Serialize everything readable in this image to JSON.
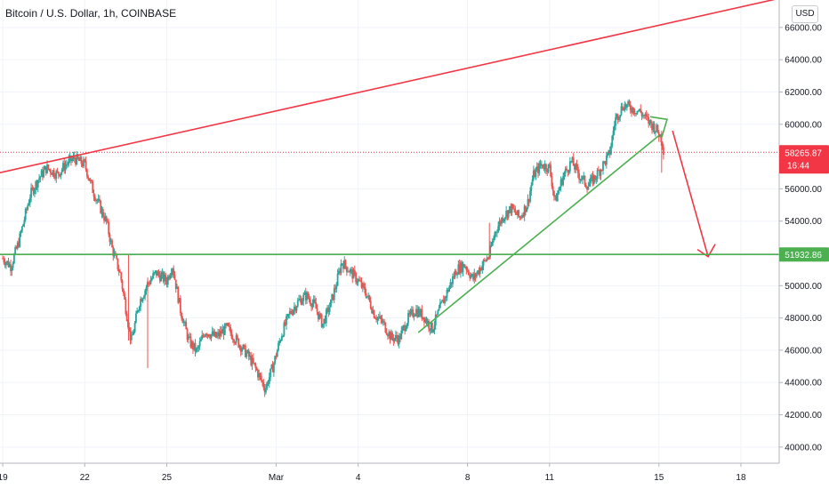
{
  "header": {
    "title": "Bitcoin / U.S. Dollar, 1h, COINBASE",
    "currency_button": "USD"
  },
  "chart_data": {
    "type": "candlestick",
    "title": "Bitcoin / U.S. Dollar, 1h, COINBASE",
    "y_ticks": [
      "40000.00",
      "42000.00",
      "44000.00",
      "46000.00",
      "48000.00",
      "50000.00",
      "52000.00",
      "54000.00",
      "56000.00",
      "58000.00",
      "60000.00",
      "62000.00",
      "64000.00",
      "66000.00"
    ],
    "y_tick_values": [
      40000,
      42000,
      44000,
      46000,
      48000,
      50000,
      52000,
      54000,
      56000,
      58000,
      60000,
      62000,
      64000,
      66000
    ],
    "ylim": [
      39000,
      67700
    ],
    "x_ticks": [
      "19",
      "22",
      "25",
      "Mar",
      "4",
      "8",
      "11",
      "15",
      "18"
    ],
    "x_tick_days": [
      0,
      3,
      6,
      10,
      13,
      17,
      20,
      24,
      27
    ],
    "x_range_days": [
      -0.1,
      28.4
    ],
    "grid": true,
    "colors": {
      "up": "#26a69a",
      "down": "#ef5350",
      "resistance": "#f23645",
      "support": "#4caf50",
      "dotted_price": "#f23645"
    },
    "current_price": {
      "value": 58265.87,
      "label": "58265.87",
      "countdown": "16:44"
    },
    "support_level": {
      "value": 51932.86,
      "label": "51932.86"
    },
    "close_path": [
      [
        0.0,
        51700
      ],
      [
        0.3,
        51200
      ],
      [
        0.6,
        52800
      ],
      [
        1.0,
        55600
      ],
      [
        1.3,
        56600
      ],
      [
        1.6,
        57300
      ],
      [
        2.0,
        56900
      ],
      [
        2.3,
        57500
      ],
      [
        2.6,
        57900
      ],
      [
        3.0,
        57500
      ],
      [
        3.3,
        55900
      ],
      [
        3.6,
        54700
      ],
      [
        3.8,
        53900
      ],
      [
        4.0,
        52300
      ],
      [
        4.3,
        50700
      ],
      [
        4.5,
        48600
      ],
      [
        4.7,
        46500
      ],
      [
        5.0,
        49000
      ],
      [
        5.3,
        50100
      ],
      [
        5.6,
        50800
      ],
      [
        6.0,
        50300
      ],
      [
        6.2,
        51300
      ],
      [
        6.5,
        48500
      ],
      [
        6.8,
        46600
      ],
      [
        7.1,
        45900
      ],
      [
        7.4,
        47200
      ],
      [
        7.8,
        46800
      ],
      [
        8.2,
        47400
      ],
      [
        8.6,
        46500
      ],
      [
        9.0,
        45600
      ],
      [
        9.3,
        44700
      ],
      [
        9.6,
        43600
      ],
      [
        9.9,
        45100
      ],
      [
        10.2,
        47000
      ],
      [
        10.5,
        48300
      ],
      [
        10.8,
        49000
      ],
      [
        11.1,
        49400
      ],
      [
        11.4,
        48800
      ],
      [
        11.7,
        47600
      ],
      [
        12.0,
        48900
      ],
      [
        12.2,
        50100
      ],
      [
        12.4,
        51500
      ],
      [
        12.7,
        50900
      ],
      [
        13.0,
        50300
      ],
      [
        13.3,
        49500
      ],
      [
        13.6,
        48200
      ],
      [
        13.9,
        47700
      ],
      [
        14.2,
        46800
      ],
      [
        14.5,
        46700
      ],
      [
        14.8,
        47900
      ],
      [
        15.1,
        48500
      ],
      [
        15.4,
        48100
      ],
      [
        15.7,
        47300
      ],
      [
        16.0,
        48600
      ],
      [
        16.3,
        49800
      ],
      [
        16.6,
        51000
      ],
      [
        16.9,
        51300
      ],
      [
        17.2,
        50400
      ],
      [
        17.5,
        51200
      ],
      [
        17.8,
        51900
      ],
      [
        18.0,
        53300
      ],
      [
        18.3,
        54300
      ],
      [
        18.6,
        54800
      ],
      [
        18.9,
        54200
      ],
      [
        19.2,
        55100
      ],
      [
        19.4,
        56800
      ],
      [
        19.7,
        57500
      ],
      [
        20.0,
        57300
      ],
      [
        20.2,
        55200
      ],
      [
        20.5,
        56800
      ],
      [
        20.8,
        57700
      ],
      [
        21.1,
        56800
      ],
      [
        21.4,
        56200
      ],
      [
        21.7,
        56800
      ],
      [
        22.0,
        57600
      ],
      [
        22.2,
        58200
      ],
      [
        22.4,
        60300
      ],
      [
        22.7,
        61200
      ],
      [
        23.0,
        61000
      ],
      [
        23.3,
        60800
      ],
      [
        23.6,
        60200
      ],
      [
        23.9,
        59700
      ],
      [
        24.1,
        59100
      ],
      [
        24.2,
        58100
      ]
    ],
    "annotations": [
      {
        "type": "trendline",
        "color": "resistance",
        "from": [
          -0.1,
          57000
        ],
        "to": [
          28.4,
          67800
        ]
      },
      {
        "type": "trendline",
        "color": "support",
        "from": [
          15.2,
          47100
        ],
        "to": [
          24.0,
          59300
        ]
      },
      {
        "type": "arrowhead",
        "color": "support",
        "tip": [
          24.3,
          60300
        ]
      },
      {
        "type": "arrow",
        "color": "resistance",
        "from": [
          24.5,
          59600
        ],
        "to": [
          25.8,
          51800
        ]
      }
    ]
  }
}
